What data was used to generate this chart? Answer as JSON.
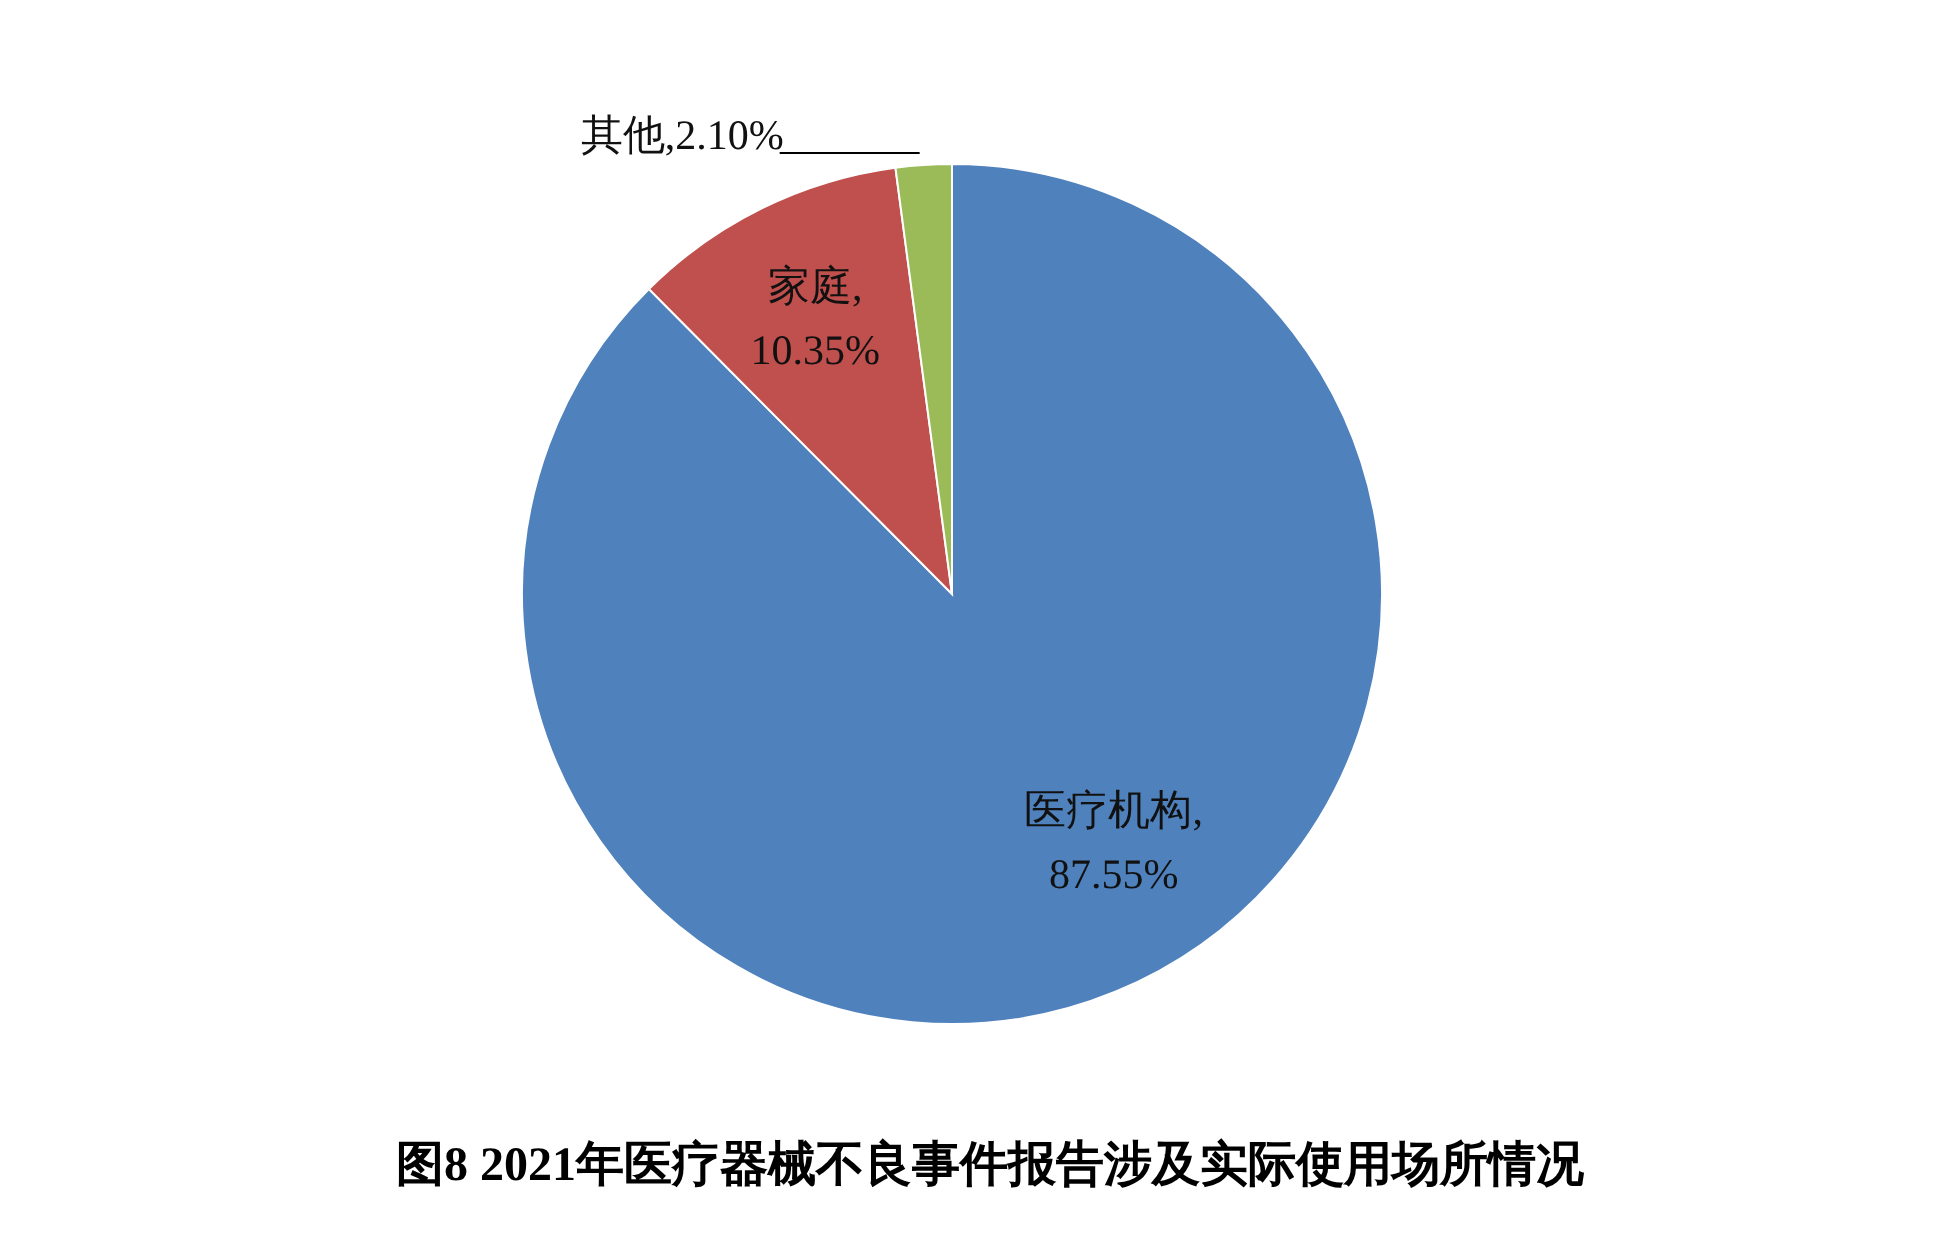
{
  "chart_data": {
    "type": "pie",
    "title": "图8  2021年医疗器械不良事件报告涉及实际使用场所情况",
    "categories": [
      "医疗机构",
      "家庭",
      "其他"
    ],
    "values": [
      87.55,
      10.35,
      2.1
    ],
    "colors": [
      "#4f81bd",
      "#c0504d",
      "#9bbb59"
    ],
    "value_labels": [
      ", 87.55%",
      ", 10.35%",
      ",2.10%"
    ],
    "legend": false
  }
}
